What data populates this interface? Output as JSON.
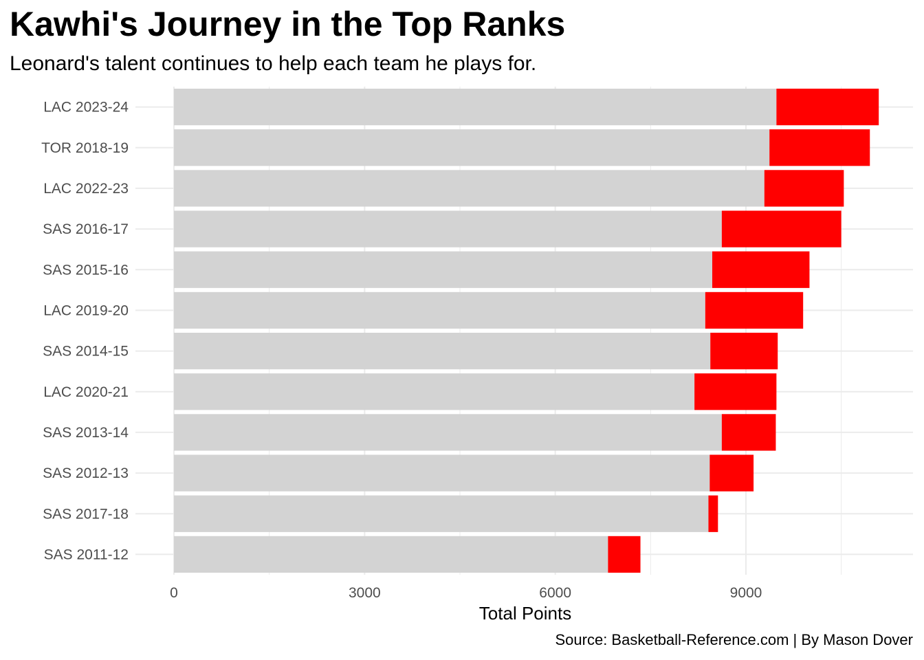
{
  "chart_data": {
    "type": "bar",
    "orientation": "horizontal",
    "stacked": true,
    "title": "Kawhi's Journey in the Top Ranks",
    "subtitle": "Leonard's talent continues to help each team he plays for.",
    "caption": "Source: Basketball-Reference.com | By Mason Dover",
    "xlabel": "Total Points",
    "ylabel": "",
    "xlim": [
      0,
      11300
    ],
    "xticks": [
      "0",
      "3000",
      "6000",
      "9000"
    ],
    "grid": true,
    "legend": "none",
    "colors": {
      "base": "#d3d3d3",
      "highlight": "#ff0000",
      "grid": "#ebebeb"
    },
    "categories": [
      "LAC 2023-24",
      "TOR 2018-19",
      "LAC 2022-23",
      "SAS 2016-17",
      "SAS 2015-16",
      "LAC 2019-20",
      "SAS 2014-15",
      "LAC 2020-21",
      "SAS 2013-14",
      "SAS 2012-13",
      "SAS 2017-18",
      "SAS 2011-12"
    ],
    "series": [
      {
        "values": [
          9480,
          9370,
          9290,
          8620,
          8470,
          8360,
          8440,
          8190,
          8620,
          8430,
          8410,
          6830
        ]
      },
      {
        "values": [
          1610,
          1580,
          1250,
          1880,
          1530,
          1540,
          1060,
          1290,
          850,
          690,
          150,
          510
        ]
      }
    ]
  }
}
